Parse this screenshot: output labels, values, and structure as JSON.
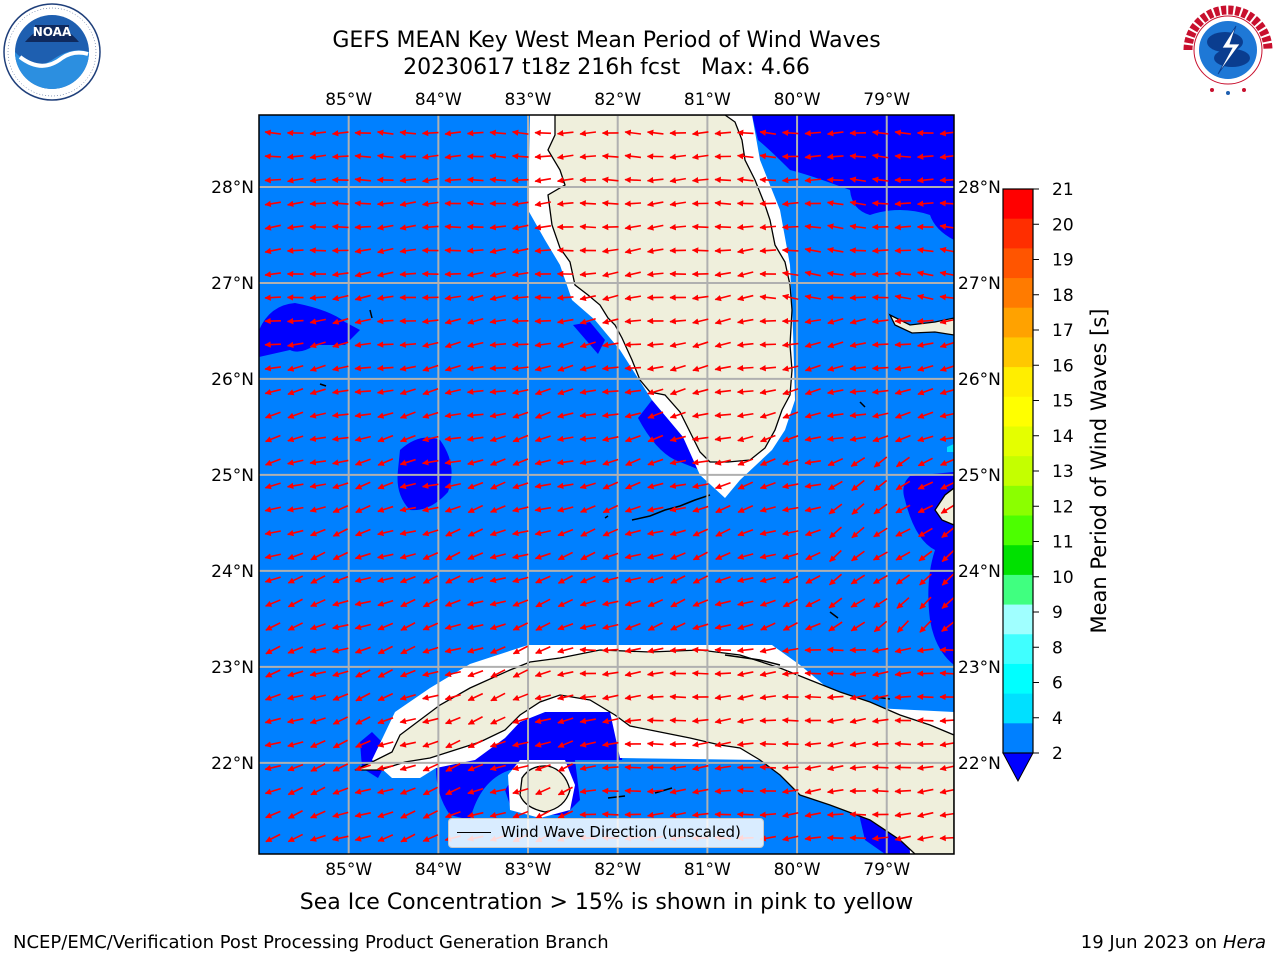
{
  "header": {
    "title_line1": "GEFS MEAN Key West Mean Period of Wind Waves",
    "title_line2": "20230617 t18z 216h fcst   Max: 4.66"
  },
  "logos": {
    "left": "noaa-logo",
    "right": "nws-logo"
  },
  "map": {
    "lon_labels": [
      "85°W",
      "84°W",
      "83°W",
      "82°W",
      "81°W",
      "80°W",
      "79°W"
    ],
    "lat_labels": [
      "28°N",
      "27°N",
      "26°N",
      "25°N",
      "24°N",
      "23°N",
      "22°N"
    ],
    "lon_range": [
      -86.0,
      -78.25
    ],
    "lat_range": [
      21.05,
      28.75
    ],
    "gridlines": true,
    "land_color": "#efefdc",
    "ocean_color": "#0080ff",
    "arrow_color": "#ff0000",
    "vector_field": "wind wave direction arrows, mostly pointing west to west-northwest"
  },
  "legend": {
    "label": "Wind Wave Direction (unscaled)",
    "placement": "lower-center"
  },
  "colorbar": {
    "label": "Mean Period of Wind Waves [s]",
    "ticks": [
      "21",
      "20",
      "19",
      "18",
      "17",
      "16",
      "15",
      "14",
      "13",
      "12",
      "11",
      "10",
      "9",
      "8",
      "6",
      "4",
      "2"
    ],
    "colors": [
      "#ff0000",
      "#ff2e00",
      "#ff5500",
      "#ff7b00",
      "#ffa200",
      "#ffc800",
      "#ffee00",
      "#ffff00",
      "#e4ff00",
      "#c4ff00",
      "#8bff00",
      "#4cff00",
      "#00e100",
      "#40ff80",
      "#a0ffff",
      "#40ffff",
      "#00ffff",
      "#00e0ff",
      "#0080ff"
    ],
    "extend_color": "#0000ff"
  },
  "notes": {
    "ice_note": "Sea Ice Concentration > 15% is shown in pink to yellow"
  },
  "footer": {
    "left": "NCEP/EMC/Verification Post Processing Product Generation Branch",
    "date": "19 Jun 2023 on",
    "host": "Hera"
  }
}
